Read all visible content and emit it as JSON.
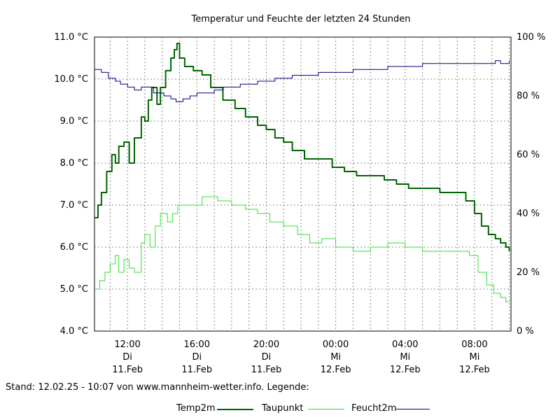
{
  "chart_data": {
    "type": "line",
    "title": "Temperatur und Feuchte der letzten 24 Stunden",
    "y_left_ticks": [
      "11.0 °C",
      "10.0 °C",
      "9.0 °C",
      "8.0 °C",
      "7.0 °C",
      "6.0 °C",
      "5.0 °C",
      "4.0 °C"
    ],
    "y_right_ticks": [
      "100 %",
      "80 %",
      "60 %",
      "40 %",
      "20 %",
      "0 %"
    ],
    "ylim_left": [
      4.0,
      11.0
    ],
    "ylim_right": [
      0,
      100
    ],
    "x_ticks": [
      {
        "time": "12:00",
        "day": "Di",
        "date": "11.Feb"
      },
      {
        "time": "16:00",
        "day": "Di",
        "date": "11.Feb"
      },
      {
        "time": "20:00",
        "day": "Di",
        "date": "11.Feb"
      },
      {
        "time": "00:00",
        "day": "Mi",
        "date": "12.Feb"
      },
      {
        "time": "04:00",
        "day": "Mi",
        "date": "12.Feb"
      },
      {
        "time": "08:00",
        "day": "Mi",
        "date": "12.Feb"
      }
    ],
    "x_tick_hours": [
      12,
      16,
      20,
      24,
      28,
      32
    ],
    "x_range_hours": [
      10.1,
      34.1
    ],
    "grid": true,
    "series": [
      {
        "name": "Temp2m",
        "axis": "left",
        "color": "#006400",
        "x": [
          10.1,
          10.3,
          10.5,
          10.8,
          11.1,
          11.3,
          11.5,
          11.8,
          12.1,
          12.4,
          12.8,
          13.0,
          13.2,
          13.4,
          13.7,
          13.9,
          14.2,
          14.5,
          14.7,
          14.85,
          15.0,
          15.3,
          15.8,
          16.3,
          16.8,
          17.5,
          18.2,
          18.8,
          19.5,
          20.0,
          20.5,
          21.0,
          21.5,
          22.2,
          23.0,
          23.8,
          24.5,
          25.2,
          26.0,
          26.8,
          27.5,
          28.2,
          29.0,
          30.0,
          30.8,
          31.5,
          32.0,
          32.4,
          32.8,
          33.2,
          33.5,
          33.8,
          34.0
        ],
        "y": [
          6.7,
          7.0,
          7.3,
          7.8,
          8.2,
          8.0,
          8.4,
          8.5,
          8.0,
          8.6,
          9.1,
          9.0,
          9.5,
          9.8,
          9.4,
          9.8,
          10.2,
          10.5,
          10.7,
          10.85,
          10.5,
          10.3,
          10.2,
          10.1,
          9.8,
          9.5,
          9.3,
          9.1,
          8.9,
          8.8,
          8.6,
          8.5,
          8.3,
          8.1,
          8.1,
          7.9,
          7.8,
          7.7,
          7.7,
          7.6,
          7.5,
          7.4,
          7.4,
          7.3,
          7.3,
          7.1,
          6.8,
          6.5,
          6.3,
          6.2,
          6.1,
          6.0,
          5.9
        ]
      },
      {
        "name": "Taupunkt",
        "axis": "left",
        "color": "#33dd33",
        "x": [
          10.1,
          10.4,
          10.7,
          11.0,
          11.3,
          11.5,
          11.8,
          12.1,
          12.4,
          12.8,
          13.0,
          13.3,
          13.6,
          13.9,
          14.3,
          14.6,
          14.9,
          15.3,
          15.8,
          16.3,
          16.7,
          17.2,
          18.0,
          18.8,
          19.5,
          20.2,
          21.0,
          21.8,
          22.5,
          23.2,
          24.0,
          25.0,
          26.0,
          27.0,
          28.0,
          29.0,
          30.0,
          31.2,
          31.7,
          32.2,
          32.7,
          33.1,
          33.5,
          33.8,
          34.0
        ],
        "y": [
          5.0,
          5.2,
          5.4,
          5.6,
          5.8,
          5.4,
          5.7,
          5.5,
          5.4,
          6.1,
          6.3,
          6.0,
          6.5,
          6.8,
          6.6,
          6.8,
          7.0,
          7.0,
          7.0,
          7.2,
          7.2,
          7.1,
          7.0,
          6.9,
          6.8,
          6.6,
          6.5,
          6.3,
          6.1,
          6.2,
          6.0,
          5.9,
          6.0,
          6.1,
          6.0,
          5.9,
          5.9,
          5.9,
          5.8,
          5.4,
          5.1,
          4.9,
          4.8,
          4.7,
          4.7
        ]
      },
      {
        "name": "Feucht2m",
        "axis": "right",
        "color": "#000080",
        "x": [
          10.1,
          10.5,
          10.9,
          11.3,
          11.6,
          12.0,
          12.4,
          12.8,
          13.2,
          13.5,
          13.8,
          14.1,
          14.5,
          14.8,
          15.2,
          15.6,
          16.0,
          16.5,
          17.0,
          17.5,
          18.0,
          18.5,
          19.0,
          19.5,
          20.0,
          20.5,
          21.0,
          21.5,
          22.0,
          23.0,
          24.0,
          25.0,
          26.0,
          27.0,
          28.0,
          29.0,
          30.0,
          31.0,
          32.0,
          32.8,
          33.2,
          33.5,
          34.0
        ],
        "y": [
          89,
          88,
          86,
          85,
          84,
          83,
          82,
          83,
          83,
          81,
          81,
          80,
          79,
          78,
          79,
          80,
          81,
          81,
          82,
          83,
          83,
          84,
          84,
          85,
          85,
          86,
          86,
          87,
          87,
          88,
          88,
          89,
          89,
          90,
          90,
          91,
          91,
          91,
          91,
          91,
          92,
          91,
          92
        ]
      }
    ]
  },
  "footer_text": "Stand: 12.02.25 - 10:07 von www.mannheim-wetter.info. Legende:",
  "legend": [
    {
      "label": "Temp2m",
      "color": "#006400"
    },
    {
      "label": "Taupunkt",
      "color": "#33dd33"
    },
    {
      "label": "Feucht2m",
      "color": "#000080"
    }
  ]
}
